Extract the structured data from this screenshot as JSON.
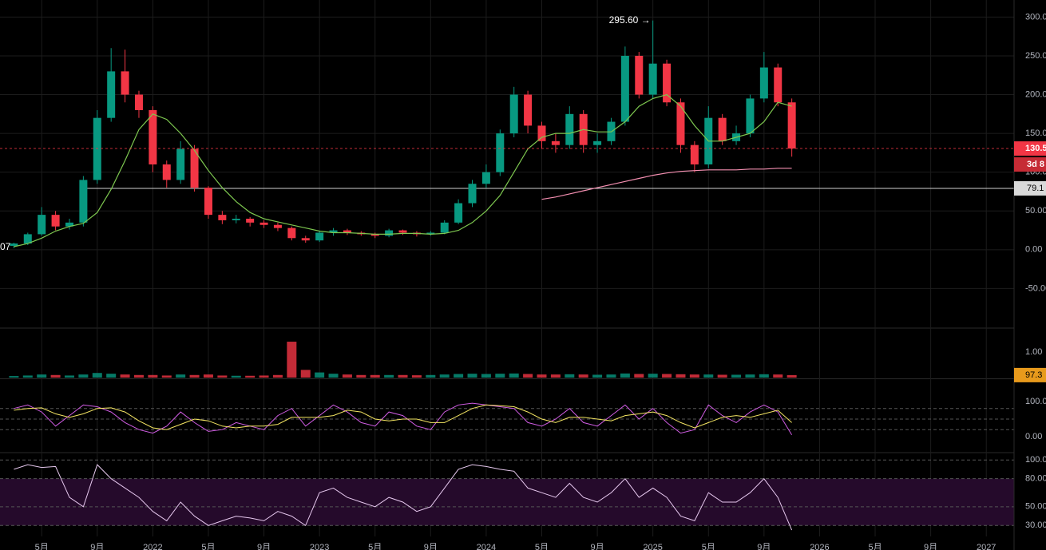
{
  "chart_data": {
    "type": "candlestick",
    "x": [
      "2021-03",
      "2021-04",
      "2021-05",
      "2021-06",
      "2021-07",
      "2021-08",
      "2021-09",
      "2021-10",
      "2021-11",
      "2021-12",
      "2022-01",
      "2022-02",
      "2022-03",
      "2022-04",
      "2022-05",
      "2022-06",
      "2022-07",
      "2022-08",
      "2022-09",
      "2022-10",
      "2022-11",
      "2022-12",
      "2023-01",
      "2023-02",
      "2023-03",
      "2023-04",
      "2023-05",
      "2023-06",
      "2023-07",
      "2023-08",
      "2023-09",
      "2023-10",
      "2023-11",
      "2023-12",
      "2024-01",
      "2024-02",
      "2024-03",
      "2024-04",
      "2024-05",
      "2024-06",
      "2024-07",
      "2024-08",
      "2024-09",
      "2024-10",
      "2024-11",
      "2024-12",
      "2025-01",
      "2025-02",
      "2025-03",
      "2025-04",
      "2025-05",
      "2025-06",
      "2025-07",
      "2025-08",
      "2025-09",
      "2025-10",
      "2025-11"
    ],
    "open": [
      5,
      8,
      20,
      45,
      30,
      35,
      90,
      170,
      230,
      200,
      180,
      110,
      90,
      130,
      80,
      45,
      38,
      40,
      35,
      32,
      28,
      15,
      12,
      22,
      25,
      22,
      20,
      18,
      25,
      22,
      20,
      22,
      35,
      60,
      85,
      100,
      150,
      200,
      160,
      140,
      135,
      175,
      135,
      140,
      165,
      250,
      200,
      240,
      190,
      135,
      110,
      170,
      140,
      150,
      195,
      235,
      190
    ],
    "high": [
      9,
      22,
      55,
      50,
      40,
      95,
      180,
      260,
      258,
      205,
      185,
      115,
      140,
      135,
      82,
      50,
      45,
      42,
      38,
      35,
      30,
      18,
      24,
      28,
      27,
      24,
      22,
      27,
      26,
      24,
      24,
      38,
      65,
      90,
      110,
      155,
      210,
      205,
      165,
      150,
      185,
      180,
      150,
      170,
      262,
      255,
      295.6,
      245,
      195,
      140,
      185,
      175,
      160,
      200,
      255,
      240,
      195
    ],
    "low": [
      2,
      6,
      18,
      25,
      26,
      30,
      85,
      165,
      190,
      170,
      100,
      80,
      85,
      75,
      40,
      33,
      34,
      30,
      28,
      24,
      12,
      9,
      10,
      18,
      19,
      18,
      15,
      16,
      19,
      17,
      18,
      20,
      33,
      55,
      80,
      95,
      145,
      150,
      130,
      125,
      130,
      125,
      125,
      135,
      160,
      195,
      195,
      185,
      125,
      100,
      105,
      135,
      135,
      145,
      190,
      185,
      120
    ],
    "close": [
      8,
      20,
      45,
      30,
      35,
      90,
      170,
      230,
      200,
      180,
      110,
      90,
      130,
      80,
      45,
      38,
      40,
      35,
      32,
      28,
      15,
      12,
      22,
      25,
      22,
      20,
      18,
      25,
      22,
      20,
      22,
      35,
      60,
      85,
      100,
      150,
      200,
      160,
      140,
      135,
      175,
      135,
      140,
      165,
      250,
      200,
      240,
      190,
      135,
      110,
      170,
      140,
      150,
      195,
      235,
      190,
      130.5
    ],
    "up_color": "#089981",
    "down_color": "#f23645",
    "xlim": [
      "2021-02",
      "2027-03"
    ],
    "xticks": [
      {
        "value": "2021-05",
        "label": "5月"
      },
      {
        "value": "2021-09",
        "label": "9月"
      },
      {
        "value": "2022-01",
        "label": "2022"
      },
      {
        "value": "2022-05",
        "label": "5月"
      },
      {
        "value": "2022-09",
        "label": "9月"
      },
      {
        "value": "2023-01",
        "label": "2023"
      },
      {
        "value": "2023-05",
        "label": "5月"
      },
      {
        "value": "2023-09",
        "label": "9月"
      },
      {
        "value": "2024-01",
        "label": "2024"
      },
      {
        "value": "2024-05",
        "label": "5月"
      },
      {
        "value": "2024-09",
        "label": "9月"
      },
      {
        "value": "2025-01",
        "label": "2025"
      },
      {
        "value": "2025-05",
        "label": "5月"
      },
      {
        "value": "2025-09",
        "label": "9月"
      },
      {
        "value": "2026-01",
        "label": "2026"
      },
      {
        "value": "2026-05",
        "label": "5月"
      },
      {
        "value": "2026-09",
        "label": "9月"
      },
      {
        "value": "2027-01",
        "label": "2027"
      }
    ],
    "ylim": [
      -100,
      322
    ],
    "yticks": [
      {
        "value": 300,
        "label": "300.00"
      },
      {
        "value": 250,
        "label": "250.00"
      },
      {
        "value": 200,
        "label": "200.00"
      },
      {
        "value": 150,
        "label": "150.00"
      },
      {
        "value": 100,
        "label": "100.00"
      },
      {
        "value": 50,
        "label": "50.00"
      },
      {
        "value": 0,
        "label": "0.00"
      },
      {
        "value": -50,
        "label": "-50.00"
      }
    ],
    "grid": true,
    "ma": {
      "color": "#7ec850",
      "values": [
        4,
        8,
        15,
        24,
        30,
        34,
        48,
        78,
        115,
        155,
        175,
        168,
        150,
        128,
        102,
        80,
        62,
        48,
        40,
        36,
        32,
        28,
        24,
        22,
        22,
        21,
        20,
        20,
        21,
        21,
        20,
        21,
        25,
        35,
        50,
        70,
        100,
        130,
        145,
        150,
        150,
        155,
        152,
        152,
        165,
        185,
        195,
        200,
        185,
        160,
        140,
        140,
        145,
        150,
        165,
        190,
        185
      ]
    },
    "ma_long": {
      "color": "#f48fb1",
      "values": [
        null,
        null,
        null,
        null,
        null,
        null,
        null,
        null,
        null,
        null,
        null,
        null,
        null,
        null,
        null,
        null,
        null,
        null,
        null,
        null,
        null,
        null,
        null,
        null,
        null,
        null,
        null,
        null,
        null,
        null,
        null,
        null,
        null,
        null,
        null,
        null,
        null,
        null,
        65,
        68,
        72,
        76,
        80,
        84,
        88,
        92,
        96,
        99,
        101,
        102,
        103,
        103,
        103,
        104,
        104,
        105,
        105
      ]
    },
    "hline": {
      "value": 79.1,
      "label": "79.1"
    },
    "last_price_label": "130.5",
    "countdown_label": "3d 8",
    "high_label": "295.60 →",
    "low_label": "07",
    "volume": {
      "values": [
        0.06,
        0.08,
        0.12,
        0.1,
        0.08,
        0.12,
        0.18,
        0.15,
        0.12,
        0.1,
        0.1,
        0.08,
        0.12,
        0.1,
        0.12,
        0.08,
        0.07,
        0.07,
        0.08,
        0.1,
        1.4,
        0.3,
        0.2,
        0.15,
        0.12,
        0.1,
        0.1,
        0.1,
        0.1,
        0.09,
        0.1,
        0.12,
        0.14,
        0.15,
        0.14,
        0.15,
        0.16,
        0.14,
        0.12,
        0.12,
        0.13,
        0.12,
        0.11,
        0.12,
        0.16,
        0.14,
        0.15,
        0.14,
        0.13,
        0.12,
        0.12,
        0.11,
        0.11,
        0.12,
        0.13,
        0.12,
        0.097
      ],
      "ylim": [
        0,
        1.9
      ],
      "yticks": [
        {
          "value": 1,
          "label": "1.00"
        }
      ],
      "label": "97.3"
    },
    "stoch": {
      "series": [
        {
          "color": "#d05ce3",
          "values": [
            80,
            90,
            70,
            30,
            60,
            90,
            85,
            70,
            40,
            20,
            10,
            30,
            70,
            40,
            15,
            20,
            40,
            30,
            20,
            60,
            80,
            30,
            60,
            90,
            70,
            40,
            30,
            70,
            60,
            30,
            20,
            70,
            90,
            95,
            90,
            85,
            80,
            40,
            30,
            50,
            80,
            40,
            30,
            60,
            90,
            50,
            80,
            40,
            10,
            20,
            90,
            60,
            40,
            70,
            90,
            70,
            5
          ]
        },
        {
          "color": "#f5e663",
          "values": [
            75,
            80,
            82,
            65,
            55,
            65,
            80,
            82,
            70,
            45,
            25,
            20,
            35,
            50,
            45,
            30,
            25,
            30,
            30,
            35,
            55,
            55,
            55,
            60,
            75,
            70,
            50,
            45,
            50,
            50,
            40,
            40,
            60,
            80,
            90,
            88,
            85,
            70,
            50,
            40,
            55,
            55,
            50,
            45,
            60,
            65,
            70,
            60,
            40,
            25,
            40,
            55,
            60,
            55,
            65,
            75,
            40
          ]
        }
      ],
      "ylim": [
        -43,
        161
      ],
      "yticks": [
        {
          "value": 100,
          "label": "100.00"
        },
        {
          "value": 0,
          "label": "0.00"
        }
      ],
      "bands": [
        80,
        50,
        20
      ]
    },
    "rsi": {
      "color": "#e6c8ee",
      "values": [
        90,
        95,
        92,
        93,
        60,
        50,
        95,
        80,
        70,
        60,
        45,
        35,
        55,
        40,
        30,
        35,
        40,
        38,
        35,
        45,
        40,
        30,
        65,
        70,
        60,
        55,
        50,
        60,
        55,
        45,
        50,
        70,
        90,
        95,
        93,
        90,
        88,
        70,
        65,
        60,
        75,
        60,
        55,
        65,
        80,
        60,
        70,
        60,
        40,
        35,
        65,
        55,
        55,
        65,
        80,
        60,
        25
      ],
      "ylim": [
        20,
        107
      ],
      "yticks": [
        {
          "value": 100,
          "label": "100.00"
        },
        {
          "value": 80,
          "label": "80.00"
        },
        {
          "value": 50,
          "label": "50.00"
        },
        {
          "value": 30,
          "label": "30.00"
        }
      ],
      "band": [
        30,
        80
      ]
    }
  }
}
